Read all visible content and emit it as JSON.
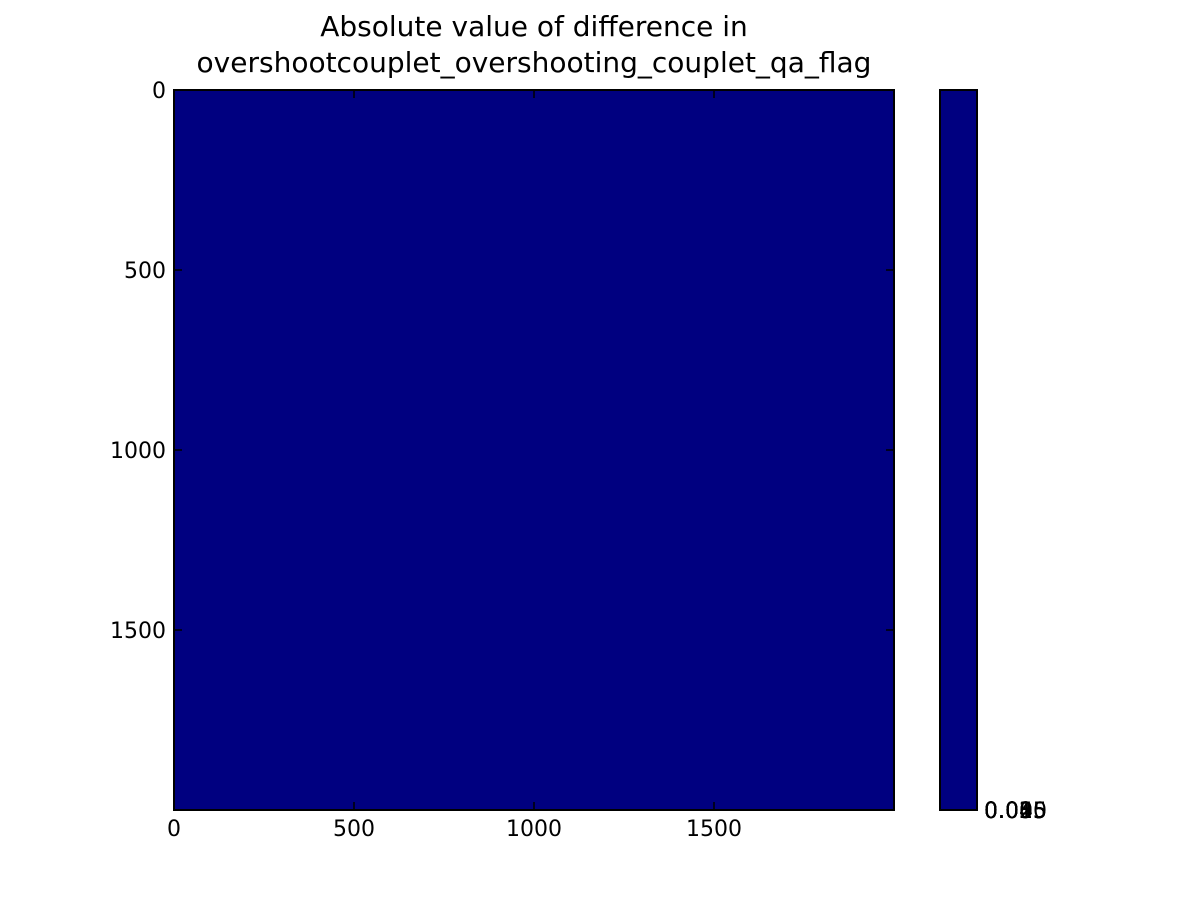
{
  "chart_data": {
    "type": "heatmap",
    "title_lines": [
      "Absolute value of difference in",
      "overshootcouplet_overshooting_couplet_qa_flag"
    ],
    "xlabel": "",
    "ylabel": "",
    "xlim": [
      0,
      2000
    ],
    "ylim": [
      2000,
      0
    ],
    "x_ticks": [
      0,
      500,
      1000,
      1500
    ],
    "y_ticks": [
      0,
      500,
      1000,
      1500
    ],
    "x_tick_labels": [
      "0",
      "500",
      "1000",
      "1500"
    ],
    "y_tick_labels": [
      "0",
      "500",
      "1000",
      "1500"
    ],
    "grid": false,
    "field_value": 0,
    "field_color": "#000080",
    "colorbar": {
      "colormap": "jet",
      "color": "#000080",
      "tick_labels": [
        "0.000",
        "0.005",
        "0.015",
        "0.025",
        "0.035",
        "0.045",
        "0.055"
      ]
    }
  }
}
